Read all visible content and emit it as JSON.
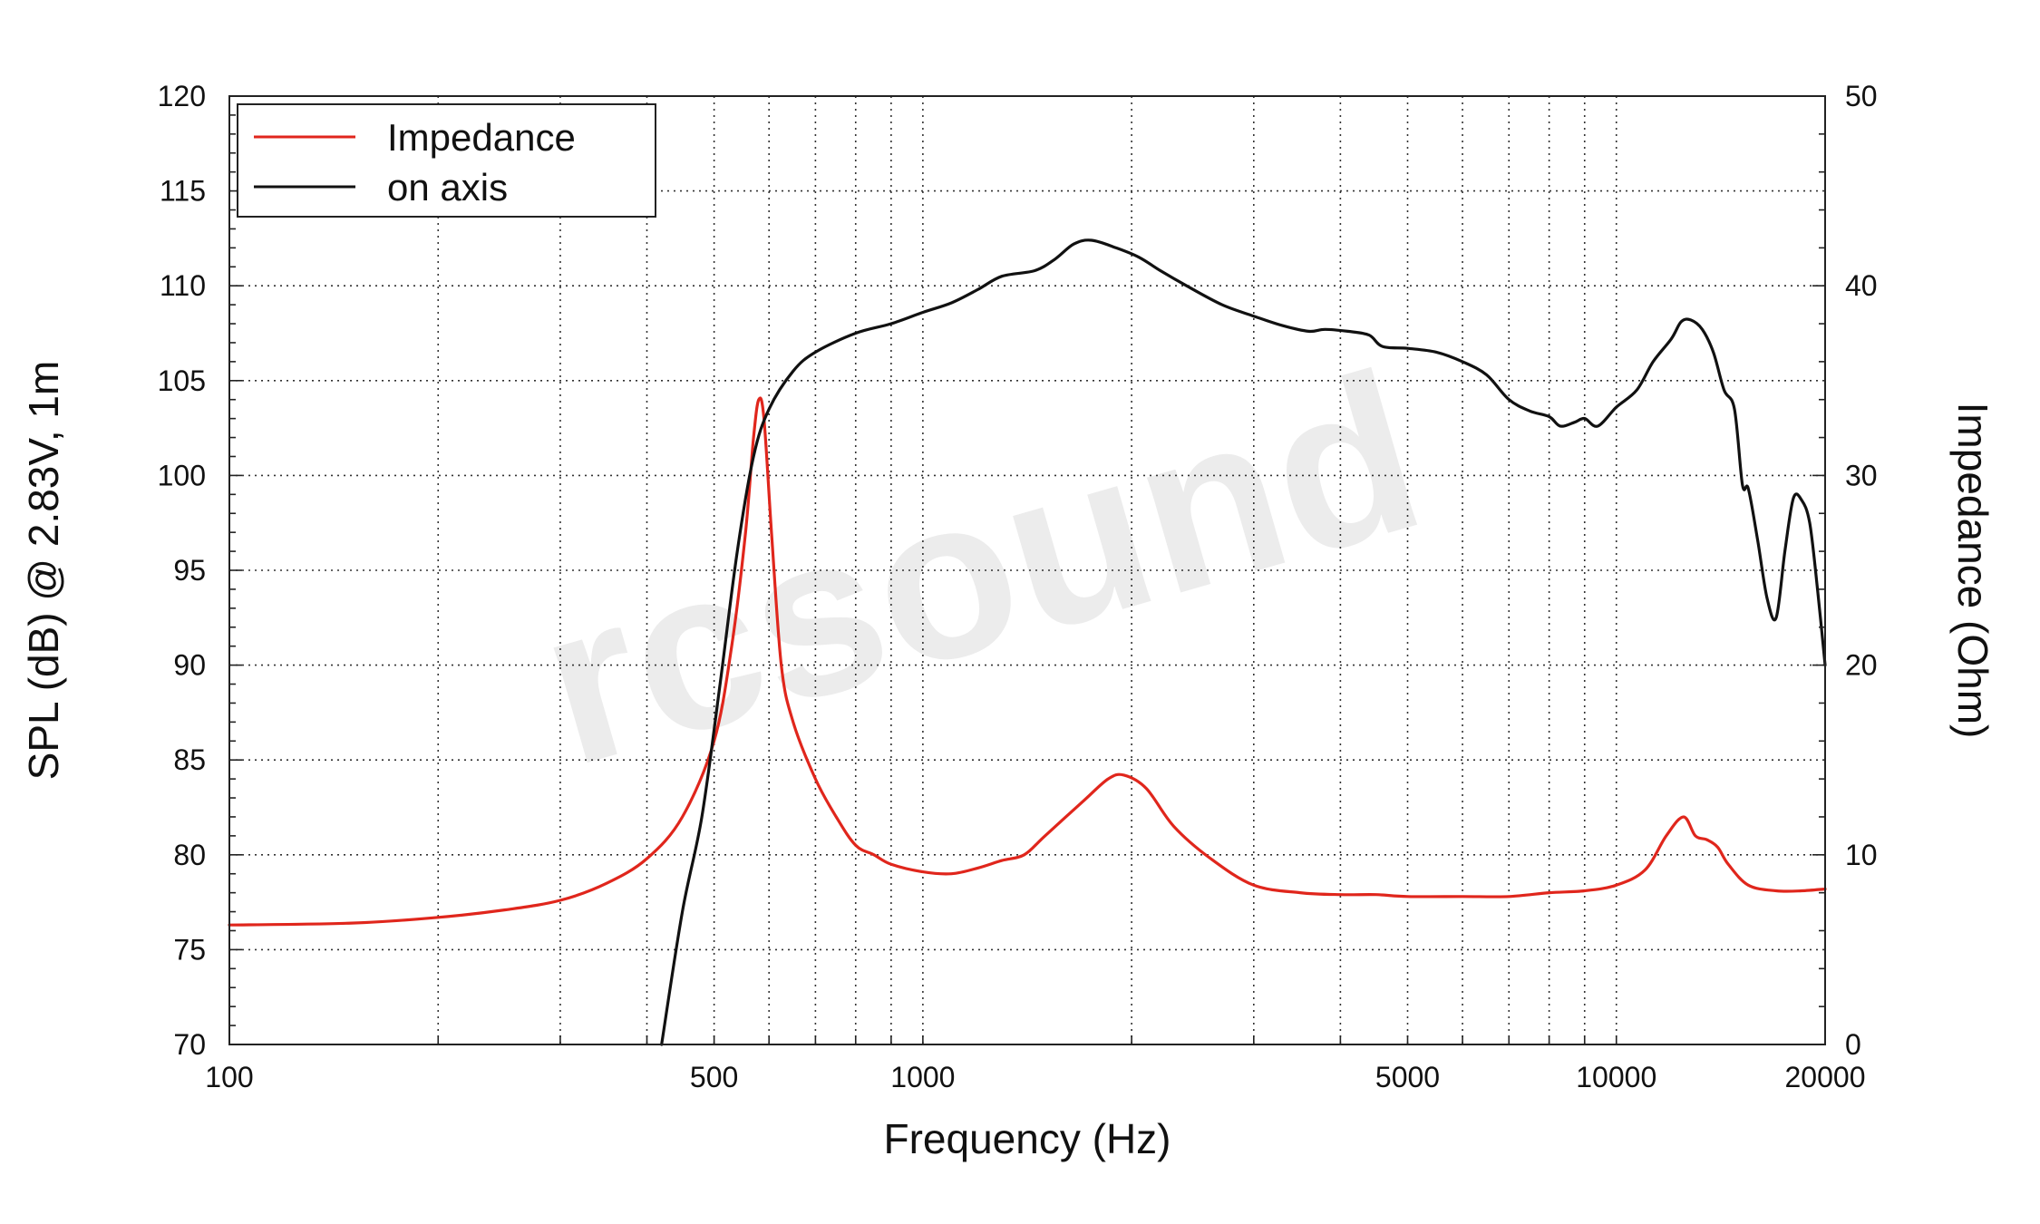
{
  "chart_data": {
    "type": "line",
    "xlabel": "Frequency (Hz)",
    "ylabel": "SPL (dB) @ 2.83V, 1m",
    "y2label": "Impedance (Ohm)",
    "x_scale": "log",
    "xlim": [
      100,
      20000
    ],
    "ylim": [
      70,
      120
    ],
    "y2lim": [
      0,
      50
    ],
    "x_ticks": [
      100,
      500,
      1000,
      5000,
      10000,
      20000
    ],
    "x_tick_labels": [
      "100",
      "500",
      "1000",
      "5000",
      "10000",
      "20000"
    ],
    "y_ticks": [
      70,
      75,
      80,
      85,
      90,
      95,
      100,
      105,
      110,
      115,
      120
    ],
    "y_tick_labels": [
      "70",
      "75",
      "80",
      "85",
      "90",
      "95",
      "100",
      "105",
      "110",
      "115",
      "120"
    ],
    "y2_ticks": [
      0,
      10,
      20,
      30,
      40,
      50
    ],
    "y2_tick_labels": [
      "0",
      "10",
      "20",
      "30",
      "40",
      "50"
    ],
    "grid": true,
    "legend_position": "top-left",
    "watermark": "rcsound",
    "series": [
      {
        "name": "Impedance",
        "axis": "right",
        "color": "#e0261c",
        "points": [
          [
            100,
            6.3
          ],
          [
            150,
            6.4
          ],
          [
            200,
            6.7
          ],
          [
            250,
            7.1
          ],
          [
            300,
            7.6
          ],
          [
            350,
            8.5
          ],
          [
            400,
            9.8
          ],
          [
            450,
            12
          ],
          [
            500,
            16
          ],
          [
            530,
            21
          ],
          [
            555,
            27
          ],
          [
            570,
            32
          ],
          [
            580,
            34
          ],
          [
            590,
            33
          ],
          [
            605,
            27
          ],
          [
            625,
            20
          ],
          [
            650,
            17
          ],
          [
            700,
            14
          ],
          [
            750,
            12
          ],
          [
            800,
            10.5
          ],
          [
            850,
            10
          ],
          [
            900,
            9.5
          ],
          [
            1000,
            9.1
          ],
          [
            1100,
            9.0
          ],
          [
            1200,
            9.3
          ],
          [
            1300,
            9.7
          ],
          [
            1400,
            10
          ],
          [
            1500,
            11
          ],
          [
            1700,
            12.8
          ],
          [
            1850,
            14
          ],
          [
            1950,
            14.2
          ],
          [
            2100,
            13.5
          ],
          [
            2300,
            11.5
          ],
          [
            2600,
            9.8
          ],
          [
            3000,
            8.4
          ],
          [
            3500,
            8.0
          ],
          [
            4000,
            7.9
          ],
          [
            4500,
            7.9
          ],
          [
            5000,
            7.8
          ],
          [
            6000,
            7.8
          ],
          [
            7000,
            7.8
          ],
          [
            8000,
            8.0
          ],
          [
            9000,
            8.1
          ],
          [
            10000,
            8.4
          ],
          [
            11000,
            9.2
          ],
          [
            11800,
            11
          ],
          [
            12500,
            12
          ],
          [
            13000,
            11
          ],
          [
            13500,
            10.8
          ],
          [
            14000,
            10.4
          ],
          [
            14500,
            9.5
          ],
          [
            15500,
            8.4
          ],
          [
            17000,
            8.1
          ],
          [
            18500,
            8.1
          ],
          [
            20000,
            8.2
          ]
        ]
      },
      {
        "name": "on axis",
        "axis": "left",
        "color": "#111111",
        "points": [
          [
            420,
            70
          ],
          [
            450,
            77
          ],
          [
            480,
            82
          ],
          [
            510,
            89
          ],
          [
            540,
            96
          ],
          [
            570,
            101
          ],
          [
            600,
            103.5
          ],
          [
            650,
            105.5
          ],
          [
            700,
            106.5
          ],
          [
            800,
            107.5
          ],
          [
            900,
            108
          ],
          [
            1000,
            108.6
          ],
          [
            1100,
            109.1
          ],
          [
            1200,
            109.8
          ],
          [
            1300,
            110.5
          ],
          [
            1450,
            110.8
          ],
          [
            1550,
            111.4
          ],
          [
            1650,
            112.2
          ],
          [
            1750,
            112.4
          ],
          [
            1900,
            112
          ],
          [
            2050,
            111.5
          ],
          [
            2200,
            110.8
          ],
          [
            2400,
            110
          ],
          [
            2700,
            109
          ],
          [
            3000,
            108.4
          ],
          [
            3300,
            107.9
          ],
          [
            3600,
            107.6
          ],
          [
            3800,
            107.7
          ],
          [
            4100,
            107.6
          ],
          [
            4400,
            107.4
          ],
          [
            4600,
            106.8
          ],
          [
            5000,
            106.7
          ],
          [
            5500,
            106.5
          ],
          [
            6000,
            106
          ],
          [
            6500,
            105.3
          ],
          [
            7000,
            104
          ],
          [
            7500,
            103.4
          ],
          [
            8000,
            103.1
          ],
          [
            8300,
            102.6
          ],
          [
            8700,
            102.8
          ],
          [
            9000,
            103
          ],
          [
            9400,
            102.6
          ],
          [
            10000,
            103.6
          ],
          [
            10700,
            104.5
          ],
          [
            11300,
            106
          ],
          [
            12000,
            107.2
          ],
          [
            12400,
            108.1
          ],
          [
            12800,
            108.2
          ],
          [
            13300,
            107.7
          ],
          [
            13800,
            106.5
          ],
          [
            14300,
            104.5
          ],
          [
            14800,
            103.5
          ],
          [
            15200,
            99.5
          ],
          [
            15500,
            99.3
          ],
          [
            16000,
            96.5
          ],
          [
            16500,
            93.5
          ],
          [
            17000,
            92.5
          ],
          [
            17500,
            96
          ],
          [
            18000,
            98.8
          ],
          [
            18500,
            98.7
          ],
          [
            19000,
            97.5
          ],
          [
            19500,
            94
          ],
          [
            20000,
            90
          ]
        ]
      }
    ]
  }
}
